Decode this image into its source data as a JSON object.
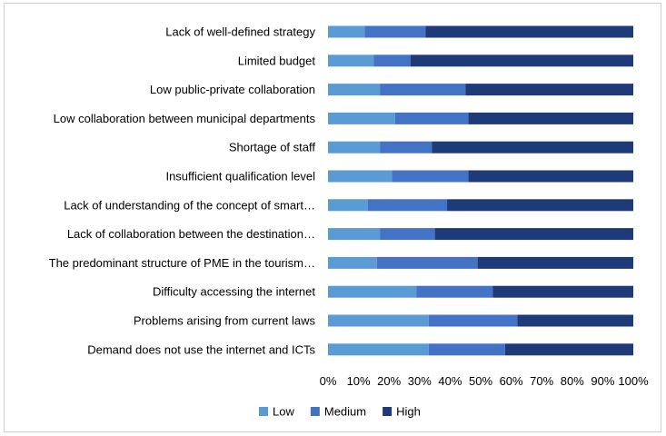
{
  "chart_data": {
    "type": "bar",
    "orientation": "horizontal",
    "stacked": "percent",
    "categories": [
      "Lack of well-defined strategy",
      "Limited budget",
      "Low public-private collaboration",
      "Low collaboration between municipal departments",
      "Shortage of staff",
      "Insufficient qualification level",
      "Lack of understanding of the concept of smart…",
      "Lack of collaboration between the destination…",
      "The predominant structure of PME in the tourism…",
      "Difficulty accessing the internet",
      "Problems arising from current laws",
      "Demand does not use the internet and ICTs"
    ],
    "series": [
      {
        "name": "Low",
        "color": "#5b9bd5",
        "values": [
          12,
          15,
          17,
          22,
          17,
          21,
          13,
          17,
          16,
          29,
          33,
          33
        ]
      },
      {
        "name": "Medium",
        "color": "#4472c4",
        "values": [
          20,
          12,
          28,
          24,
          17,
          25,
          26,
          18,
          33,
          25,
          29,
          25
        ]
      },
      {
        "name": "High",
        "color": "#1f3a78",
        "values": [
          68,
          73,
          55,
          54,
          66,
          54,
          61,
          65,
          51,
          46,
          38,
          42
        ]
      }
    ],
    "x_ticks": [
      "0%",
      "10%",
      "20%",
      "30%",
      "40%",
      "50%",
      "60%",
      "70%",
      "80%",
      "90%",
      "100%"
    ],
    "xlim": [
      0,
      100
    ],
    "grid": false,
    "legend_position": "bottom"
  }
}
